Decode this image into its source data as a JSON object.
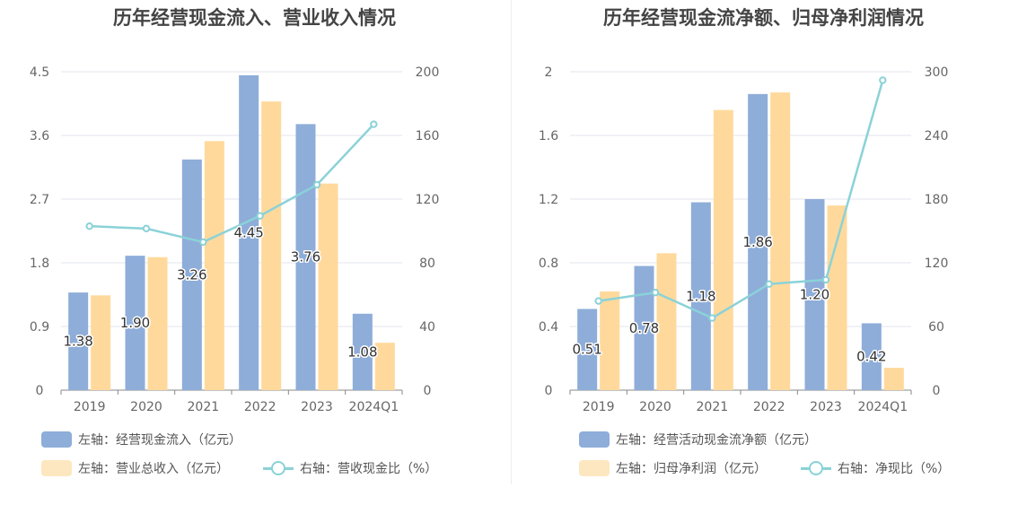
{
  "charts": [
    {
      "title": "历年经营现金流入、营业收入情况",
      "legend": [
        {
          "label": "左轴：经营现金流入（亿元）",
          "type": "bar",
          "color": "#8eadd9"
        },
        {
          "label": "左轴：营业总收入（亿元）",
          "type": "bar",
          "color": "#fde7c0"
        },
        {
          "label": "右轴：营收现金比（%）",
          "type": "line",
          "color": "#8ad2d8"
        }
      ]
    },
    {
      "title": "历年经营现金流净额、归母净利润情况",
      "legend": [
        {
          "label": "左轴：经营活动现金流净额（亿元）",
          "type": "bar",
          "color": "#8eadd9"
        },
        {
          "label": "左轴：归母净利润（亿元）",
          "type": "bar",
          "color": "#fde7c0"
        },
        {
          "label": "右轴：净现比（%）",
          "type": "line",
          "color": "#8ad2d8"
        }
      ]
    }
  ],
  "chart_data": [
    {
      "type": "bar",
      "title": "历年经营现金流入、营业收入情况",
      "categories": [
        "2019",
        "2020",
        "2021",
        "2022",
        "2023",
        "2024Q1"
      ],
      "left_axis": {
        "ticks": [
          "0",
          "0.9",
          "1.8",
          "2.7",
          "3.6",
          "4.5"
        ],
        "range": [
          0,
          4.5
        ]
      },
      "right_axis": {
        "ticks": [
          "0",
          "40",
          "80",
          "120",
          "160",
          "200"
        ],
        "range": [
          0,
          200
        ]
      },
      "series": [
        {
          "name": "左轴：经营现金流入（亿元）",
          "axis": "left",
          "kind": "bar",
          "color": "#8eadd9",
          "values": [
            1.38,
            1.9,
            3.26,
            4.45,
            3.76,
            1.08
          ],
          "labels": [
            "1.38",
            "1.90",
            "3.26",
            "4.45",
            "3.76",
            "1.08"
          ]
        },
        {
          "name": "左轴：营业总收入（亿元）",
          "axis": "left",
          "kind": "bar",
          "color": "#ffd99c",
          "values": [
            1.34,
            1.88,
            3.52,
            4.08,
            2.92,
            0.67
          ]
        },
        {
          "name": "右轴：营收现金比（%）",
          "axis": "right",
          "kind": "line",
          "color": "#8ad2d8",
          "values": [
            103,
            101.5,
            93,
            109.5,
            129,
            167
          ]
        }
      ],
      "grid": true,
      "legend_position": "bottom-left"
    },
    {
      "type": "bar",
      "title": "历年经营现金流净额、归母净利润情况",
      "categories": [
        "2019",
        "2020",
        "2021",
        "2022",
        "2023",
        "2024Q1"
      ],
      "left_axis": {
        "ticks": [
          "0",
          "0.4",
          "0.8",
          "1.2",
          "1.6",
          "2"
        ],
        "range": [
          0,
          2
        ]
      },
      "right_axis": {
        "ticks": [
          "0",
          "60",
          "120",
          "180",
          "240",
          "300"
        ],
        "range": [
          0,
          300
        ]
      },
      "series": [
        {
          "name": "左轴：经营活动现金流净额（亿元）",
          "axis": "left",
          "kind": "bar",
          "color": "#8eadd9",
          "values": [
            0.51,
            0.78,
            1.18,
            1.86,
            1.2,
            0.42
          ],
          "labels": [
            "0.51",
            "0.78",
            "1.18",
            "1.86",
            "1.20",
            "0.42"
          ]
        },
        {
          "name": "左轴：归母净利润（亿元）",
          "axis": "left",
          "kind": "bar",
          "color": "#ffd99c",
          "values": [
            0.62,
            0.86,
            1.76,
            1.87,
            1.16,
            0.14
          ]
        },
        {
          "name": "右轴：净现比（%）",
          "axis": "right",
          "kind": "line",
          "color": "#8ad2d8",
          "values": [
            84,
            92,
            68,
            100,
            104,
            292
          ]
        }
      ],
      "grid": true,
      "legend_position": "bottom-left"
    }
  ]
}
